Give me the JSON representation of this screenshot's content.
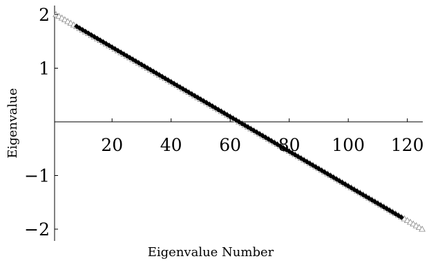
{
  "chart_data": {
    "type": "scatter",
    "title": "",
    "xlabel": "Eigenvalue Number",
    "ylabel": "Eigenvalue",
    "xlim": [
      0,
      126
    ],
    "ylim": [
      -2.15,
      2.15
    ],
    "x_ticks": [
      20,
      40,
      60,
      80,
      100,
      120
    ],
    "y_ticks": [
      -2,
      -1,
      1,
      2
    ],
    "x_tick_labels": [
      "20",
      "40",
      "60",
      "80",
      "100",
      "120"
    ],
    "y_tick_labels": [
      "−2",
      "−1",
      "1",
      "2"
    ],
    "grid": false,
    "legend": "none",
    "series": [
      {
        "marker": "open-triangle",
        "color": "#888888",
        "description_points": "eigenvalues of 125 points running linearly from about 2.0 at index 1 to about -2.0 at index 125",
        "x": [
          1,
          125
        ],
        "y": [
          2.0,
          -2.0
        ],
        "count": 125
      },
      {
        "marker": "filled-diamond",
        "color": "#000000",
        "x": [
          8,
          118
        ],
        "y": [
          1.78,
          -1.78
        ],
        "count": 111
      }
    ]
  }
}
